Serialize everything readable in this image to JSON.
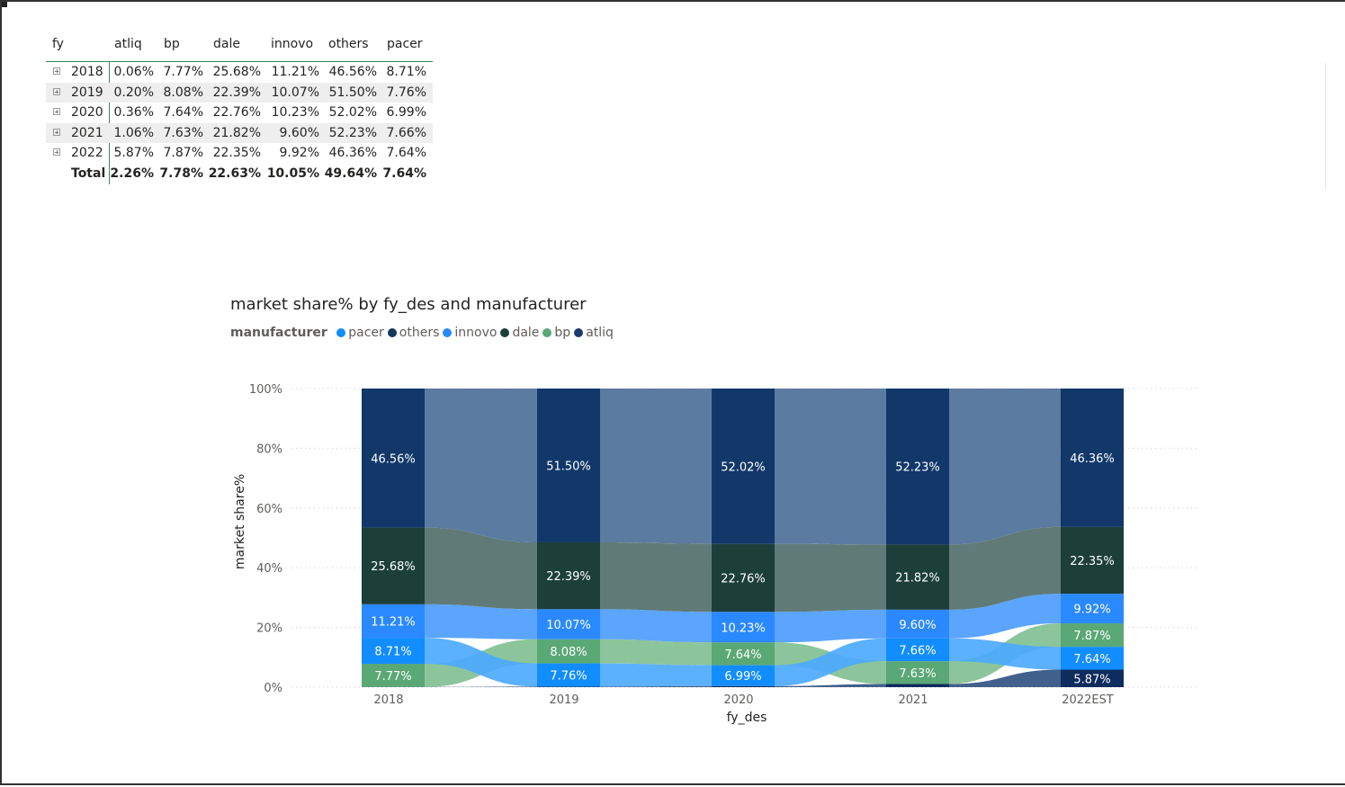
{
  "matrix": {
    "headers": [
      "fy",
      "atliq",
      "bp",
      "dale",
      "innovo",
      "others",
      "pacer"
    ],
    "rows": [
      {
        "fy": "2018",
        "values": [
          "0.06%",
          "7.77%",
          "25.68%",
          "11.21%",
          "46.56%",
          "8.71%"
        ]
      },
      {
        "fy": "2019",
        "values": [
          "0.20%",
          "8.08%",
          "22.39%",
          "10.07%",
          "51.50%",
          "7.76%"
        ]
      },
      {
        "fy": "2020",
        "values": [
          "0.36%",
          "7.64%",
          "22.76%",
          "10.23%",
          "52.02%",
          "6.99%"
        ]
      },
      {
        "fy": "2021",
        "values": [
          "1.06%",
          "7.63%",
          "21.82%",
          "9.60%",
          "52.23%",
          "7.66%"
        ]
      },
      {
        "fy": "2022",
        "values": [
          "5.87%",
          "7.87%",
          "22.35%",
          "9.92%",
          "46.36%",
          "7.64%"
        ]
      }
    ],
    "total": {
      "label": "Total",
      "values": [
        "2.26%",
        "7.78%",
        "22.63%",
        "10.05%",
        "49.64%",
        "7.64%"
      ]
    }
  },
  "chart": {
    "title": "market share% by fy_des and manufacturer",
    "legend_title": "manufacturer",
    "legend": [
      {
        "name": "pacer",
        "color": "#118dff"
      },
      {
        "name": "others",
        "color": "#12385d"
      },
      {
        "name": "innovo",
        "color": "#2b89ff"
      },
      {
        "name": "dale",
        "color": "#1c3f3a"
      },
      {
        "name": "bp",
        "color": "#5aa875"
      },
      {
        "name": "atliq",
        "color": "#1b3b6e"
      }
    ]
  },
  "chart_data": {
    "type": "bar",
    "stacked": "100%",
    "ribbon": true,
    "title": "market share% by fy_des and manufacturer",
    "xlabel": "fy_des",
    "ylabel": "market share%",
    "ylim": [
      0,
      100
    ],
    "y_ticks": [
      "0%",
      "20%",
      "40%",
      "60%",
      "80%",
      "100%"
    ],
    "categories": [
      "2018",
      "2019",
      "2020",
      "2021",
      "2022EST"
    ],
    "series": [
      {
        "name": "atliq",
        "color": "#0e2c5e",
        "values": [
          0.06,
          0.2,
          0.36,
          1.06,
          5.87
        ]
      },
      {
        "name": "bp",
        "color": "#5aa875",
        "values": [
          7.77,
          8.08,
          7.64,
          7.63,
          7.87
        ]
      },
      {
        "name": "pacer",
        "color": "#118dff",
        "values": [
          8.71,
          7.76,
          6.99,
          7.66,
          7.64
        ]
      },
      {
        "name": "innovo",
        "color": "#2b89ff",
        "values": [
          11.21,
          10.07,
          10.23,
          9.6,
          9.92
        ]
      },
      {
        "name": "dale",
        "color": "#1c3f3a",
        "values": [
          25.68,
          22.39,
          22.76,
          21.82,
          22.35
        ]
      },
      {
        "name": "others",
        "color": "#12386a",
        "values": [
          46.56,
          51.5,
          52.02,
          52.23,
          46.36
        ]
      }
    ],
    "grid": "horizontal-dotted",
    "legend_position": "top-left"
  }
}
